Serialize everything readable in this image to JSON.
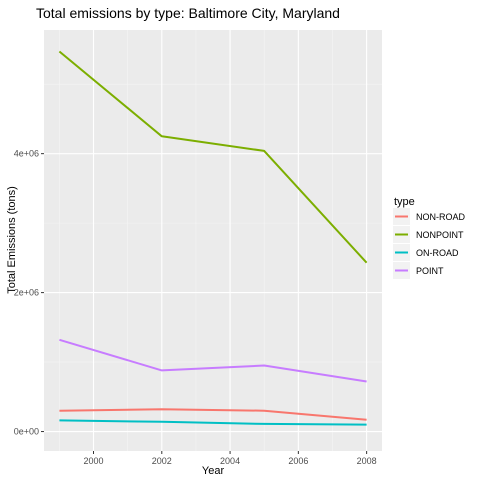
{
  "chart_data": {
    "type": "line",
    "title": "Total emissions by type: Baltimore City, Maryland",
    "xlabel": "Year",
    "ylabel": "Total Emissions (tons)",
    "x": [
      1999,
      2002,
      2005,
      2008
    ],
    "xlim": [
      1998.55,
      2008.45
    ],
    "ylim": [
      -280000,
      5780000
    ],
    "xticks": [
      2000,
      2002,
      2004,
      2006,
      2008
    ],
    "xtick_labels": [
      "2000",
      "2002",
      "2004",
      "2006",
      "2008"
    ],
    "yticks": [
      0,
      2000000,
      4000000
    ],
    "ytick_labels": [
      "0e+00",
      "2e+06",
      "4e+06"
    ],
    "grid": true,
    "legend": {
      "title": "type",
      "placement": "right"
    },
    "series": [
      {
        "name": "NON-ROAD",
        "color": "#F8766D",
        "values": [
          300000,
          320000,
          300000,
          170000
        ]
      },
      {
        "name": "NONPOINT",
        "color": "#7CAE00",
        "values": [
          5470000,
          4250000,
          4040000,
          2430000
        ]
      },
      {
        "name": "ON-ROAD",
        "color": "#00BFC4",
        "values": [
          160000,
          140000,
          110000,
          100000
        ]
      },
      {
        "name": "POINT",
        "color": "#C77CFF",
        "values": [
          1320000,
          880000,
          950000,
          720000
        ]
      }
    ]
  }
}
